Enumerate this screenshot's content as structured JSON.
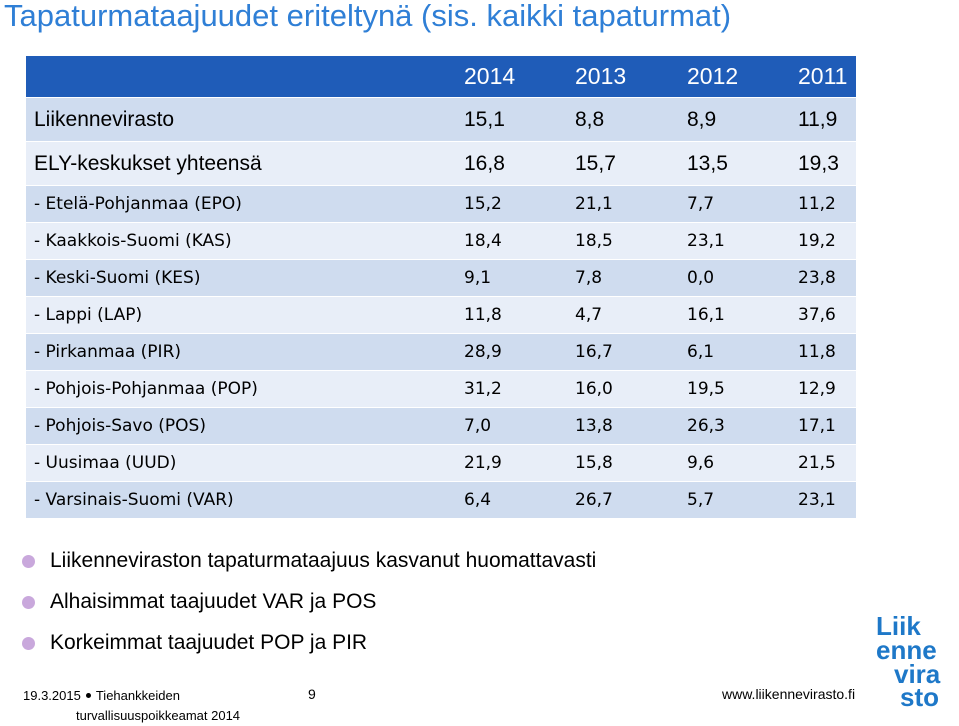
{
  "title": "Tapaturmataajuudet eriteltynä (sis. kaikki tapaturmat)",
  "table": {
    "headers": [
      "",
      "2014",
      "2013",
      "2012",
      "2011"
    ],
    "rows": [
      {
        "label": "Liikennevirasto",
        "values": [
          "15,1",
          "8,8",
          "8,9",
          "11,9"
        ]
      },
      {
        "label": "ELY-keskukset yhteensä",
        "values": [
          "16,8",
          "15,7",
          "13,5",
          "19,3"
        ]
      },
      {
        "label": "- Etelä-Pohjanmaa (EPO)",
        "values": [
          "15,2",
          "21,1",
          "7,7",
          "11,2"
        ]
      },
      {
        "label": "- Kaakkois-Suomi (KAS)",
        "values": [
          "18,4",
          "18,5",
          "23,1",
          "19,2"
        ]
      },
      {
        "label": "- Keski-Suomi (KES)",
        "values": [
          "9,1",
          "7,8",
          "0,0",
          "23,8"
        ]
      },
      {
        "label": "- Lappi (LAP)",
        "values": [
          "11,8",
          "4,7",
          "16,1",
          "37,6"
        ]
      },
      {
        "label": "- Pirkanmaa (PIR)",
        "values": [
          "28,9",
          "16,7",
          "6,1",
          "11,8"
        ]
      },
      {
        "label": "- Pohjois-Pohjanmaa (POP)",
        "values": [
          "31,2",
          "16,0",
          "19,5",
          "12,9"
        ]
      },
      {
        "label": "- Pohjois-Savo (POS)",
        "values": [
          "7,0",
          "13,8",
          "26,3",
          "17,1"
        ]
      },
      {
        "label": "- Uusimaa  (UUD)",
        "values": [
          "21,9",
          "15,8",
          "9,6",
          "21,5"
        ]
      },
      {
        "label": "- Varsinais-Suomi  (VAR)",
        "values": [
          "6,4",
          "26,7",
          "5,7",
          "23,1"
        ]
      }
    ]
  },
  "bullets": [
    "Liikenneviraston tapaturmataajuus kasvanut huomattavasti",
    "Alhaisimmat taajuudet VAR ja POS",
    "Korkeimmat taajuudet POP ja PIR"
  ],
  "footer": {
    "date": "19.3.2015",
    "event_line1": "Tiehankkeiden",
    "event_line2": "turvallisuuspoikkeamat 2014",
    "page_number": "9",
    "website": "www.liikennevirasto.fi"
  },
  "logo": {
    "lines": [
      "Liik",
      "enne",
      "vira",
      "sto"
    ],
    "color": "#1e78c8"
  },
  "colors": {
    "title": "#2f7fd6",
    "header_bg": "#1f5cb8",
    "row_dark": "#cfdcef",
    "row_light": "#e8eef8",
    "bullet": "#c9a8dc"
  }
}
